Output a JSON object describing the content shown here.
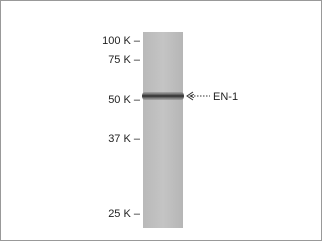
{
  "markers": [
    "100 K –",
    "75 K –",
    "50 K –",
    "37 K –",
    "25 K –"
  ],
  "band_label": "EN-1"
}
